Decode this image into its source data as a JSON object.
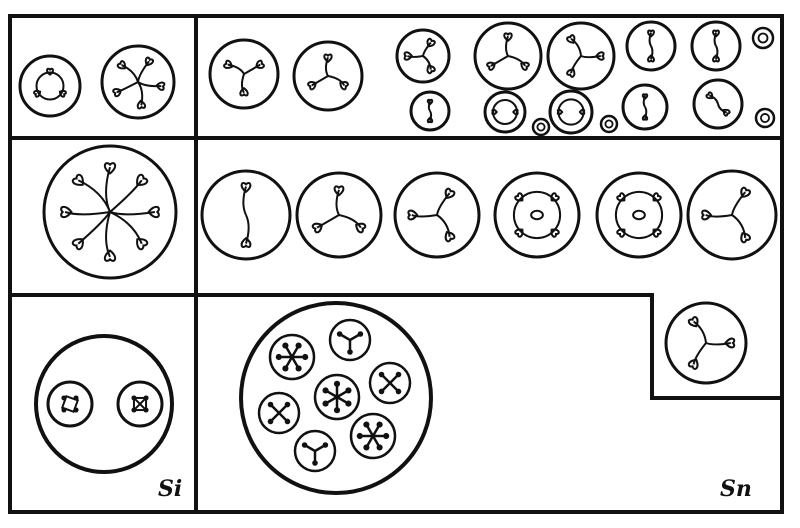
{
  "figure": {
    "labels": {
      "left": "Si",
      "right": "Sn"
    },
    "ink_color": "#111111",
    "background_color": "#ffffff"
  }
}
